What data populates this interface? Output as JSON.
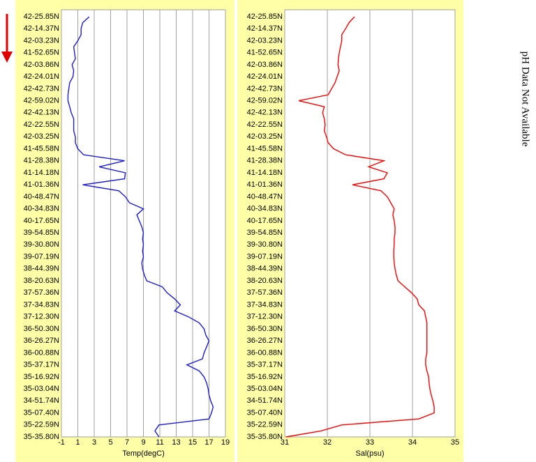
{
  "chart_data": [
    {
      "type": "line",
      "xlabel": "Temp(degC)",
      "categories": [
        "42-25.85N",
        null,
        "42-14.37N",
        null,
        "42-03.23N",
        null,
        "41-52.65N",
        null,
        "42-03.86N",
        null,
        "42-24.01N",
        null,
        "42-42.73N",
        null,
        "42-59.02N",
        null,
        "42-42.13N",
        null,
        "42-22.55N",
        null,
        "42-03.25N",
        null,
        "41-45.58N",
        null,
        "41-28.38N",
        null,
        "41-14.18N",
        null,
        "41-01.36N",
        null,
        "40-48.47N",
        null,
        "40-34.83N",
        null,
        "40-17.65N",
        null,
        "39-54.85N",
        null,
        "39-30.80N",
        null,
        "39-07.19N",
        null,
        "38-44.39N",
        null,
        "38-20.63N",
        null,
        "37-57.36N",
        null,
        "37-34.83N",
        null,
        "37-12.30N",
        null,
        "36-50.30N",
        null,
        "36-26.27N",
        null,
        "36-00.88N",
        null,
        "35-37.17N",
        null,
        "35-16.92N",
        null,
        "35-03.04N",
        null,
        "34-51.74N",
        null,
        "35-07.40N",
        null,
        "35-22.59N",
        null,
        "35-35.80N"
      ],
      "series": [
        {
          "color": "#1a1ae0",
          "values": [
            2.4,
            1.6,
            1.4,
            1.4,
            1.0,
            0.5,
            0.6,
            0.7,
            0.3,
            0.5,
            0.4,
            0,
            -0.1,
            -0.2,
            -0.2,
            0,
            0.2,
            0.5,
            0.5,
            0.5,
            0.7,
            0.7,
            1.0,
            1.7,
            6.7,
            3.6,
            6.8,
            6.7,
            1.6,
            6.0,
            6.8,
            7.3,
            9.0,
            8.2,
            8.5,
            8.8,
            9.0,
            8.9,
            9.0,
            8.9,
            9.0,
            8.8,
            8.9,
            9.1,
            9.4,
            11.3,
            11.9,
            12.8,
            13.5,
            12.8,
            14.5,
            15.8,
            16.4,
            16.6,
            17.0,
            16.7,
            16.4,
            16.2,
            14.3,
            15.8,
            16.4,
            16.7,
            16.9,
            17.0,
            17.2,
            17.5,
            17.3,
            17.0,
            10.9,
            10.4,
            10.9
          ]
        }
      ],
      "xlim": [
        -1,
        19
      ],
      "xticks": [
        -1,
        1,
        3,
        5,
        7,
        9,
        11,
        13,
        15,
        17,
        19
      ],
      "grid": true
    },
    {
      "type": "line",
      "xlabel": "Sal(psu)",
      "categories": [
        "42-25.85N",
        null,
        "42-14.37N",
        null,
        "42-03.23N",
        null,
        "41-52.65N",
        null,
        "42-03.86N",
        null,
        "42-24.01N",
        null,
        "42-42.73N",
        null,
        "42-59.02N",
        null,
        "42-42.13N",
        null,
        "42-22.55N",
        null,
        "42-03.25N",
        null,
        "41-45.58N",
        null,
        "41-28.38N",
        null,
        "41-14.18N",
        null,
        "41-01.36N",
        null,
        "40-48.47N",
        null,
        "40-34.83N",
        null,
        "40-17.65N",
        null,
        "39-54.85N",
        null,
        "39-30.80N",
        null,
        "39-07.19N",
        null,
        "38-44.39N",
        null,
        "38-20.63N",
        null,
        "37-57.36N",
        null,
        "37-34.83N",
        null,
        "37-12.30N",
        null,
        "36-50.30N",
        null,
        "36-26.27N",
        null,
        "36-00.88N",
        null,
        "35-37.17N",
        null,
        "35-16.92N",
        null,
        "35-03.04N",
        null,
        "34-51.74N",
        null,
        "35-07.40N",
        null,
        "35-22.59N",
        null,
        "35-35.80N"
      ],
      "series": [
        {
          "color": "#ff0000",
          "values": [
            32.64,
            32.51,
            32.43,
            32.34,
            32.34,
            32.31,
            32.28,
            32.26,
            32.25,
            32.28,
            32.23,
            32.18,
            32.1,
            32.02,
            31.33,
            31.93,
            31.89,
            31.93,
            31.95,
            31.93,
            31.98,
            32.02,
            32.15,
            32.43,
            33.33,
            32.97,
            33.41,
            33.33,
            32.59,
            33.26,
            33.41,
            33.49,
            33.57,
            33.54,
            33.57,
            33.59,
            33.59,
            33.57,
            33.57,
            33.56,
            33.56,
            33.57,
            33.59,
            33.62,
            33.66,
            33.82,
            33.98,
            34.11,
            34.15,
            34.28,
            34.31,
            34.34,
            34.34,
            34.34,
            34.34,
            34.34,
            34.34,
            34.31,
            34.31,
            34.34,
            34.38,
            34.39,
            34.41,
            34.44,
            34.48,
            34.51,
            34.51,
            34.15,
            32.34,
            31.85,
            31.03
          ]
        }
      ],
      "xlim": [
        31,
        35
      ],
      "xticks": [
        31,
        32,
        33,
        34,
        35
      ],
      "grid": true
    }
  ],
  "side_note": "pH Data Not Available"
}
